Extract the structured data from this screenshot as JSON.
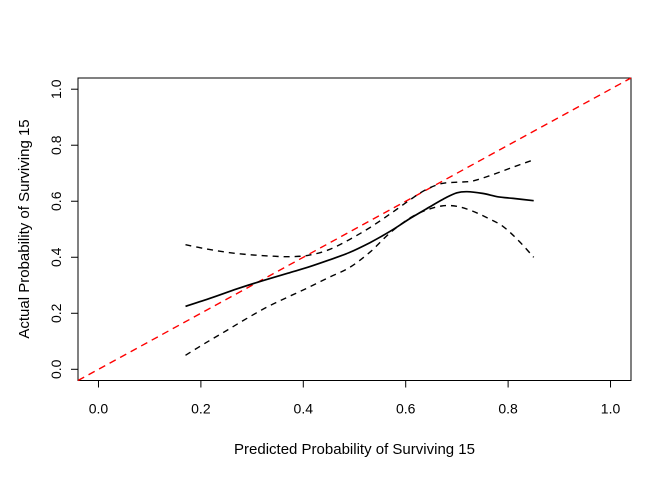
{
  "chart_data": {
    "type": "line",
    "title": "",
    "xlabel": "Predicted Probability of Surviving 15",
    "ylabel": "Actual Probability of Surviving 15",
    "xlim": [
      -0.04,
      1.04
    ],
    "ylim": [
      -0.04,
      1.04
    ],
    "grid": false,
    "legend_position": "none",
    "x_ticks": {
      "values": [
        0.0,
        0.2,
        0.4,
        0.6,
        0.8,
        1.0
      ],
      "labels": [
        "0.0",
        "0.2",
        "0.4",
        "0.6",
        "0.8",
        "1.0"
      ]
    },
    "y_ticks": {
      "values": [
        0.0,
        0.2,
        0.4,
        0.6,
        0.8,
        1.0
      ],
      "labels": [
        "0.0",
        "0.2",
        "0.4",
        "0.6",
        "0.8",
        "1.0"
      ]
    },
    "reference_line": {
      "name": "ideal-diagonal",
      "color": "#ff0000",
      "style": "dashed",
      "points": [
        [
          -0.04,
          -0.04
        ],
        [
          1.04,
          1.04
        ]
      ]
    },
    "series": [
      {
        "name": "calibration-curve",
        "style": "solid",
        "color": "#000000",
        "points": [
          [
            0.17,
            0.225
          ],
          [
            0.22,
            0.255
          ],
          [
            0.27,
            0.287
          ],
          [
            0.32,
            0.316
          ],
          [
            0.37,
            0.343
          ],
          [
            0.41,
            0.365
          ],
          [
            0.45,
            0.39
          ],
          [
            0.49,
            0.417
          ],
          [
            0.53,
            0.452
          ],
          [
            0.57,
            0.493
          ],
          [
            0.61,
            0.54
          ],
          [
            0.65,
            0.583
          ],
          [
            0.68,
            0.614
          ],
          [
            0.7,
            0.63
          ],
          [
            0.72,
            0.634
          ],
          [
            0.75,
            0.628
          ],
          [
            0.78,
            0.616
          ],
          [
            0.81,
            0.61
          ],
          [
            0.85,
            0.602
          ]
        ]
      },
      {
        "name": "upper-confidence-band",
        "style": "dashed",
        "color": "#000000",
        "points": [
          [
            0.17,
            0.445
          ],
          [
            0.21,
            0.43
          ],
          [
            0.25,
            0.418
          ],
          [
            0.29,
            0.41
          ],
          [
            0.33,
            0.405
          ],
          [
            0.37,
            0.402
          ],
          [
            0.41,
            0.407
          ],
          [
            0.45,
            0.427
          ],
          [
            0.49,
            0.463
          ],
          [
            0.53,
            0.506
          ],
          [
            0.57,
            0.555
          ],
          [
            0.61,
            0.607
          ],
          [
            0.64,
            0.642
          ],
          [
            0.67,
            0.663
          ],
          [
            0.7,
            0.668
          ],
          [
            0.73,
            0.672
          ],
          [
            0.77,
            0.695
          ],
          [
            0.81,
            0.722
          ],
          [
            0.85,
            0.748
          ]
        ]
      },
      {
        "name": "lower-confidence-band",
        "style": "dashed",
        "color": "#000000",
        "points": [
          [
            0.17,
            0.05
          ],
          [
            0.21,
            0.095
          ],
          [
            0.25,
            0.138
          ],
          [
            0.29,
            0.182
          ],
          [
            0.33,
            0.223
          ],
          [
            0.37,
            0.258
          ],
          [
            0.41,
            0.292
          ],
          [
            0.45,
            0.328
          ],
          [
            0.49,
            0.363
          ],
          [
            0.53,
            0.418
          ],
          [
            0.57,
            0.488
          ],
          [
            0.61,
            0.542
          ],
          [
            0.64,
            0.568
          ],
          [
            0.67,
            0.583
          ],
          [
            0.7,
            0.582
          ],
          [
            0.73,
            0.565
          ],
          [
            0.76,
            0.54
          ],
          [
            0.79,
            0.51
          ],
          [
            0.82,
            0.46
          ],
          [
            0.85,
            0.4
          ]
        ]
      }
    ]
  },
  "style": {
    "background": "#ffffff",
    "axis_color": "#000000",
    "accent_red": "#ff0000"
  }
}
